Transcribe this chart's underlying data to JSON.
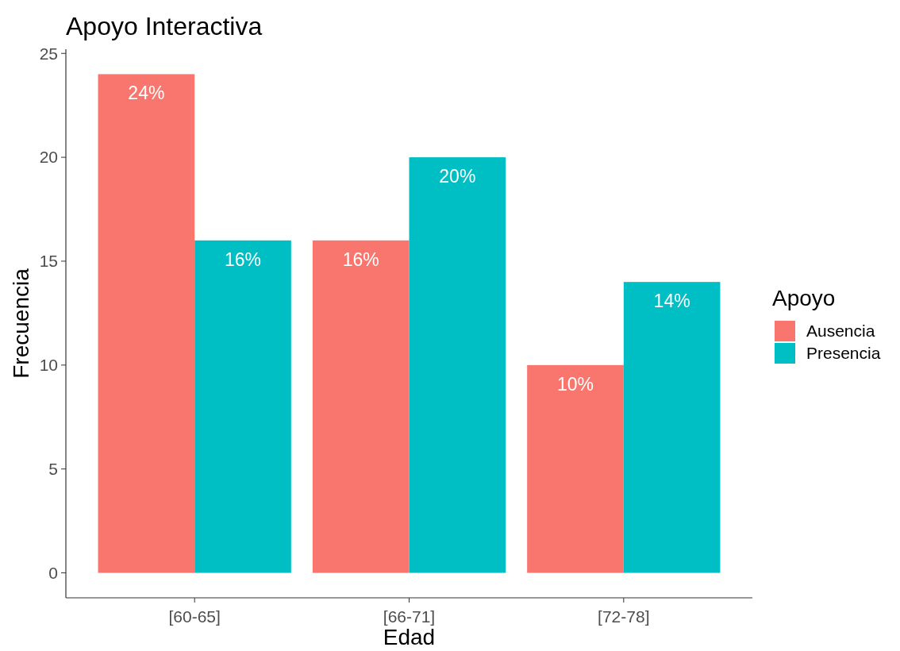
{
  "chart_data": {
    "type": "bar",
    "title": "Apoyo Interactiva",
    "xlabel": "Edad",
    "ylabel": "Frecuencia",
    "legend_title": "Apoyo",
    "legend": "right",
    "categories": [
      "[60-65]",
      "[66-71]",
      "[72-78]"
    ],
    "series": [
      {
        "name": "Ausencia",
        "color": "#f8766d",
        "values": [
          24,
          16,
          10
        ],
        "value_labels": [
          "24%",
          "16%",
          "10%"
        ]
      },
      {
        "name": "Presencia",
        "color": "#00bfc4",
        "values": [
          16,
          20,
          14
        ],
        "value_labels": [
          "16%",
          "20%",
          "14%"
        ]
      }
    ],
    "ylim": [
      -1.2,
      25.2
    ],
    "yticks": [
      0,
      5,
      10,
      15,
      20,
      25
    ]
  }
}
